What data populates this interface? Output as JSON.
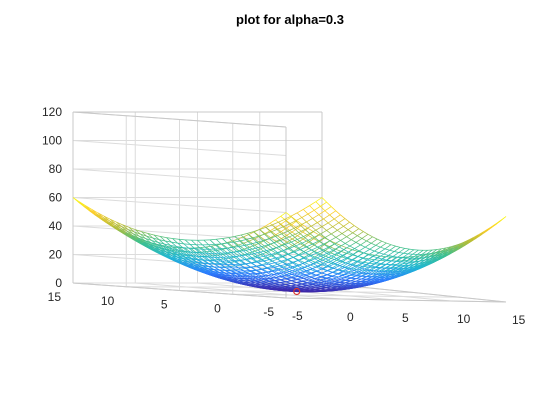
{
  "chart_data": {
    "type": "surface-mesh",
    "title": "plot for alpha=0.3",
    "xlabel": "",
    "ylabel": "",
    "zlabel": "",
    "x_range": [
      -5,
      15
    ],
    "y_range": [
      -5,
      15
    ],
    "z_range": [
      0,
      120
    ],
    "x_ticks": [
      "-5",
      "0",
      "5",
      "10",
      "15"
    ],
    "y_ticks": [
      "-5",
      "0",
      "5",
      "10",
      "15"
    ],
    "z_ticks": [
      "0",
      "20",
      "40",
      "60",
      "80",
      "100",
      "120"
    ],
    "grid": true,
    "colormap": [
      "#3e26a8",
      "#2c7bfe",
      "#21b7d4",
      "#3dc08f",
      "#b4bd38",
      "#fbcd2a",
      "#f9fb15"
    ],
    "surface": {
      "formula": "z = 0.3 * ((x - 5)^2 + (y - 5)^2)",
      "min_point": [
        5,
        5,
        0
      ],
      "corner_values": [
        {
          "x": -5,
          "y": -5,
          "z": 60
        },
        {
          "x": 15,
          "y": -5,
          "z": 60
        },
        {
          "x": -5,
          "y": 15,
          "z": 60
        },
        {
          "x": 15,
          "y": 15,
          "z": 60
        }
      ],
      "grid_points": 41
    },
    "marker": {
      "x": 5,
      "y": 5,
      "z": 0,
      "color": "#d9382e"
    }
  }
}
